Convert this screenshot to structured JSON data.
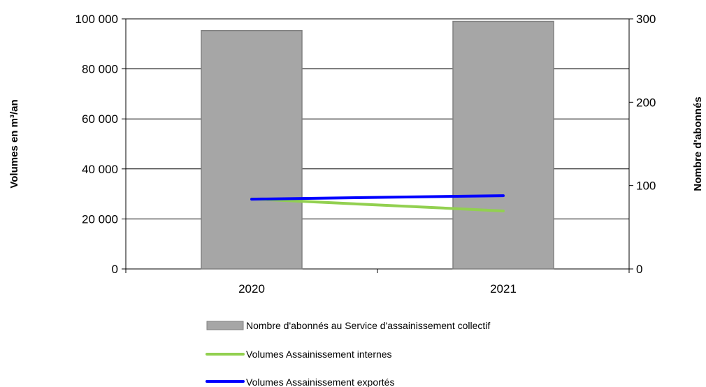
{
  "chart_data": {
    "type": "bar",
    "categories": [
      "2020",
      "2021"
    ],
    "series": [
      {
        "name": "Nombre d'abonnés au Service d'assainissement collectif",
        "kind": "bar",
        "axis": "right",
        "values": [
          286,
          297
        ],
        "color": "#a6a6a6"
      },
      {
        "name": "Volumes Assainissement internes",
        "kind": "line",
        "axis": "left",
        "values": [
          28000,
          23200
        ],
        "color": "#92d050"
      },
      {
        "name": "Volumes Assainissement exportés",
        "kind": "line",
        "axis": "left",
        "values": [
          27900,
          29300
        ],
        "color": "#0000ff"
      }
    ],
    "y_left": {
      "label": "Volumes en m³/an",
      "ylim": [
        0,
        100000
      ],
      "ticks": [
        0,
        20000,
        40000,
        60000,
        80000,
        100000
      ],
      "tick_labels": [
        "0",
        "20 000",
        "40 000",
        "60 000",
        "80 000",
        "100 000"
      ]
    },
    "y_right": {
      "label": "Nombre d'abonnés",
      "ylim": [
        0,
        300
      ],
      "ticks": [
        0,
        100,
        200,
        300
      ],
      "tick_labels": [
        "0",
        "100",
        "200",
        "300"
      ]
    },
    "grid": true,
    "legend_position": "bottom"
  }
}
